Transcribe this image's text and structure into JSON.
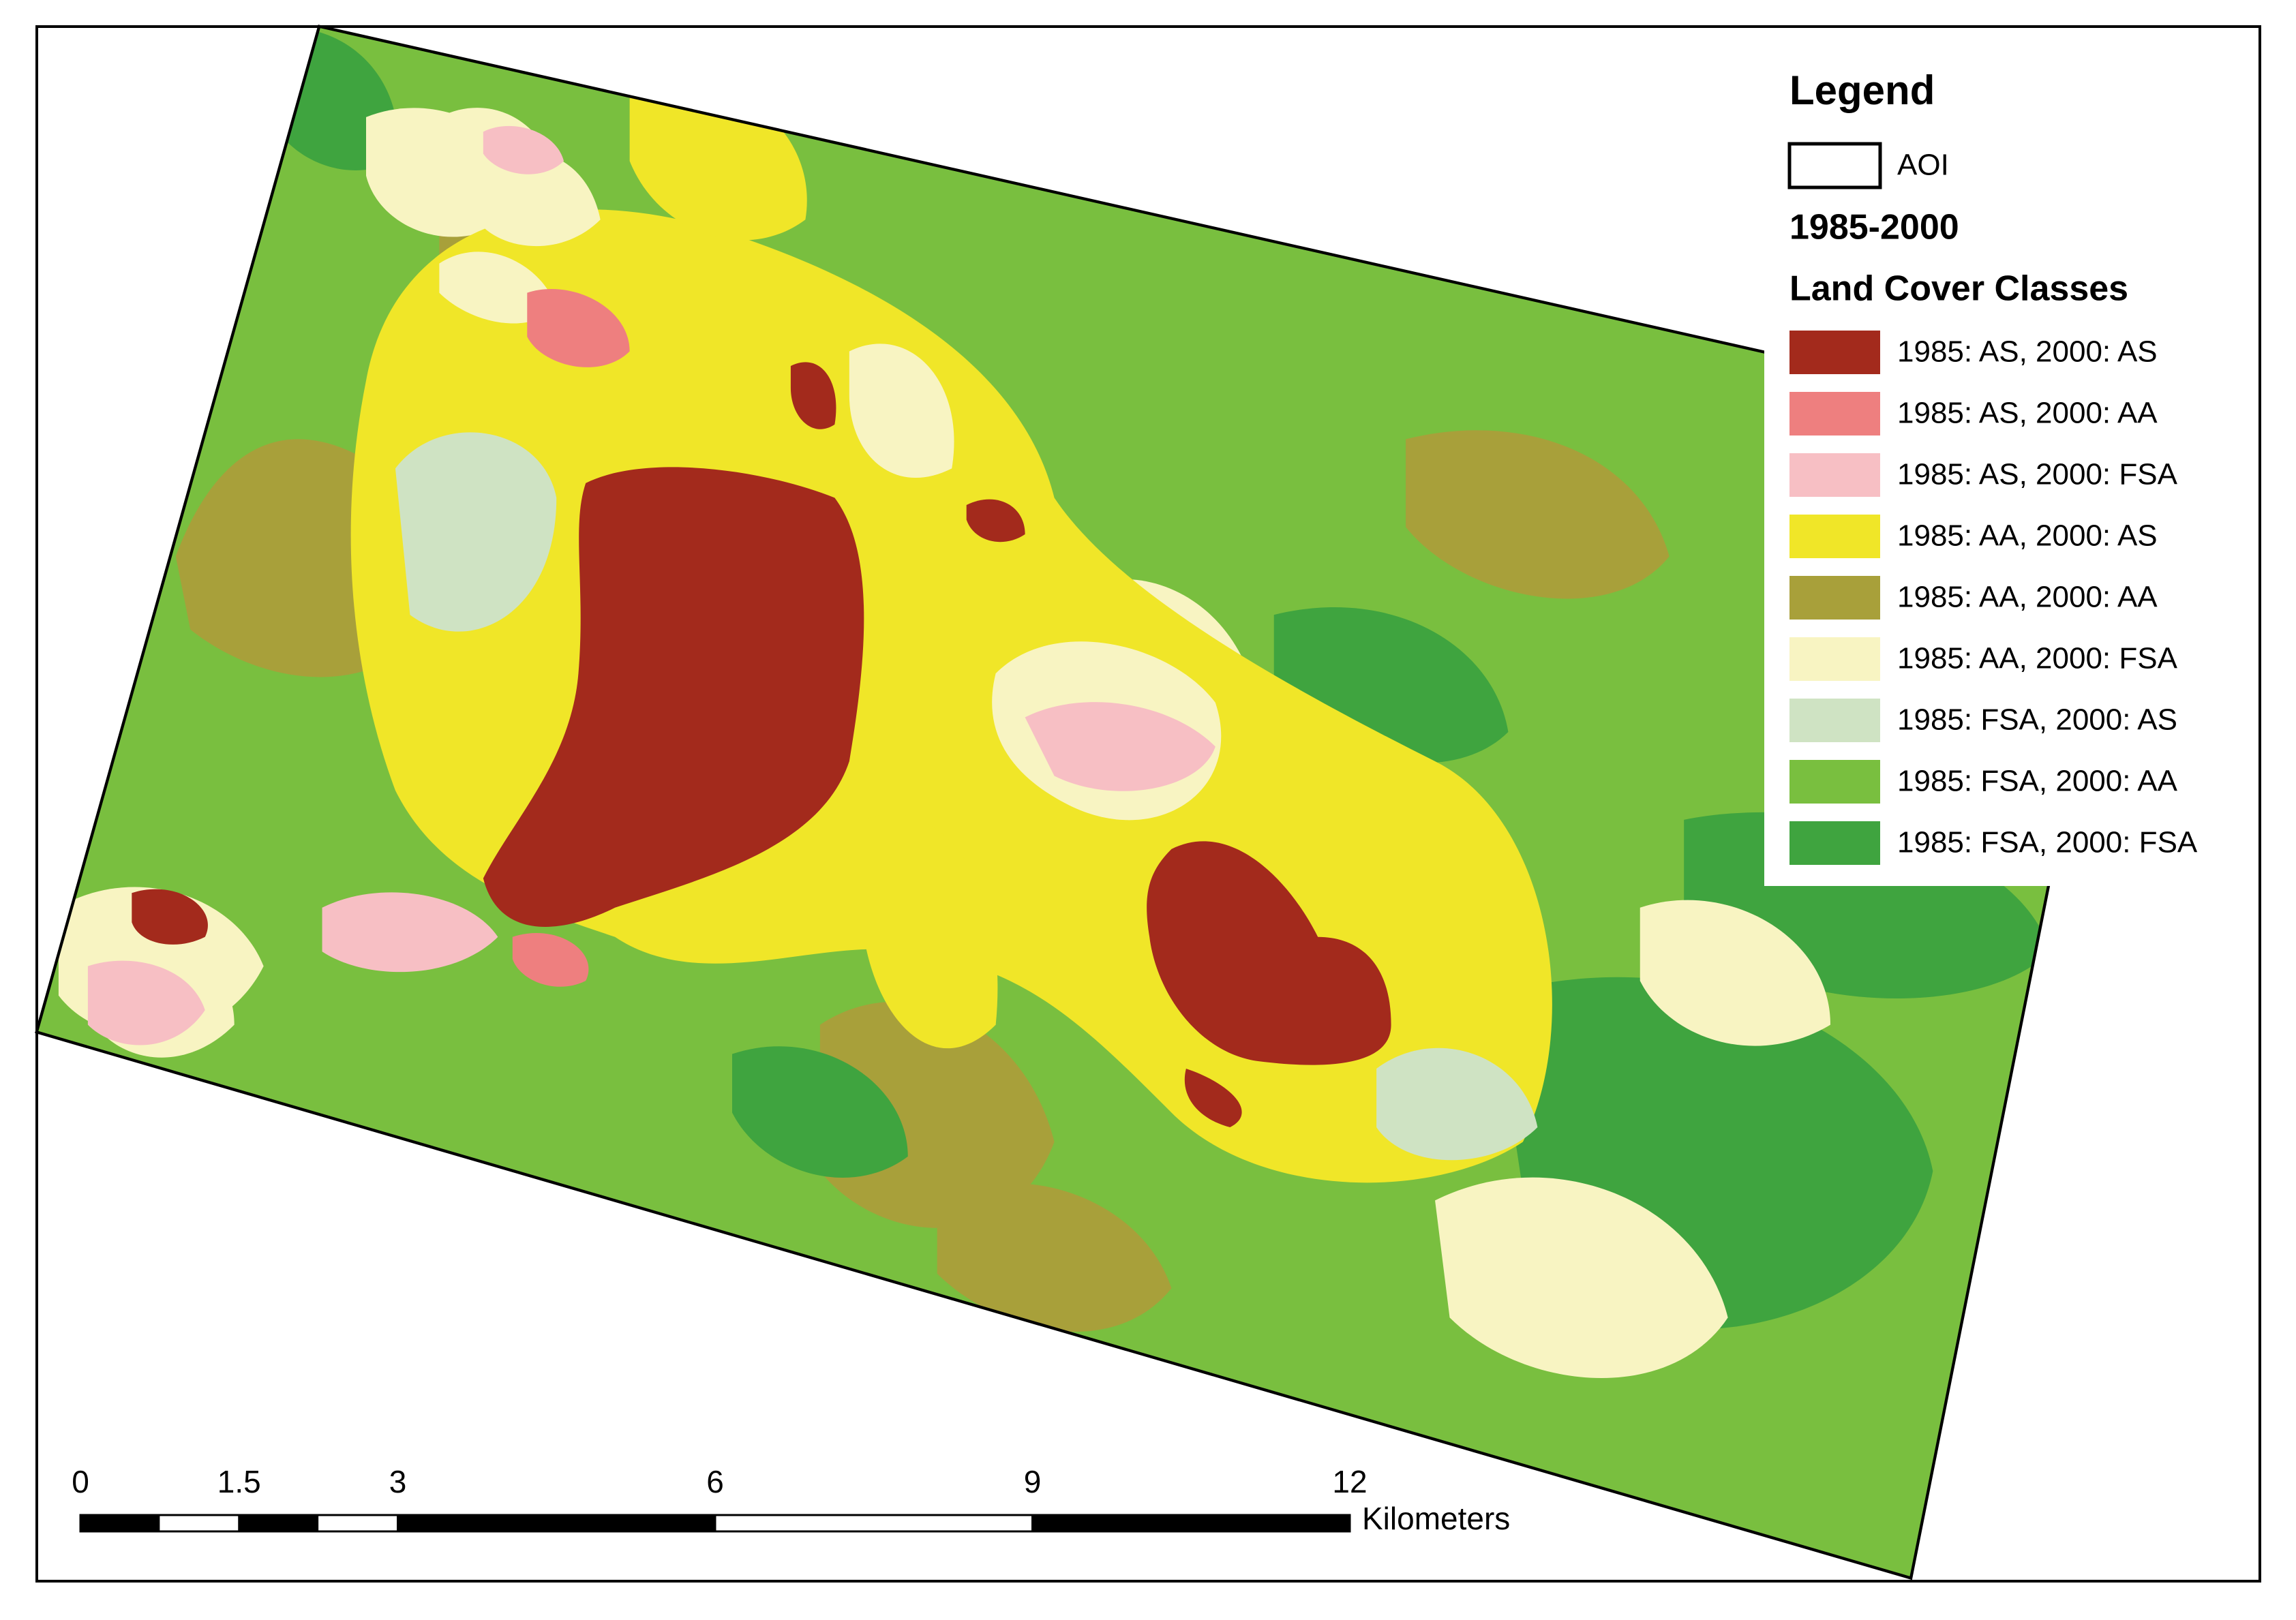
{
  "legend": {
    "title": "Legend",
    "aoi_label": "AOI",
    "period": "1985-2000",
    "classes_title": "Land Cover Classes",
    "items": [
      {
        "label": "1985: AS, 2000: AS",
        "color": "#a32a1c"
      },
      {
        "label": "1985: AS, 2000: AA",
        "color": "#ee7f7f"
      },
      {
        "label": "1985: AS, 2000: FSA",
        "color": "#f7bfc4"
      },
      {
        "label": "1985: AA, 2000: AS",
        "color": "#f0e628"
      },
      {
        "label": "1985: AA, 2000: AA",
        "color": "#a8a03a"
      },
      {
        "label": "1985: AA, 2000: FSA",
        "color": "#f8f4c2"
      },
      {
        "label": "1985: FSA, 2000: AS",
        "color": "#cfe3c3"
      },
      {
        "label": "1985: FSA, 2000: AA",
        "color": "#79bf3f"
      },
      {
        "label": "1985: FSA, 2000: FSA",
        "color": "#3fa43f"
      }
    ]
  },
  "scale_bar": {
    "ticks": [
      0,
      1.5,
      3,
      6,
      9,
      12
    ],
    "unit": "Kilometers"
  }
}
